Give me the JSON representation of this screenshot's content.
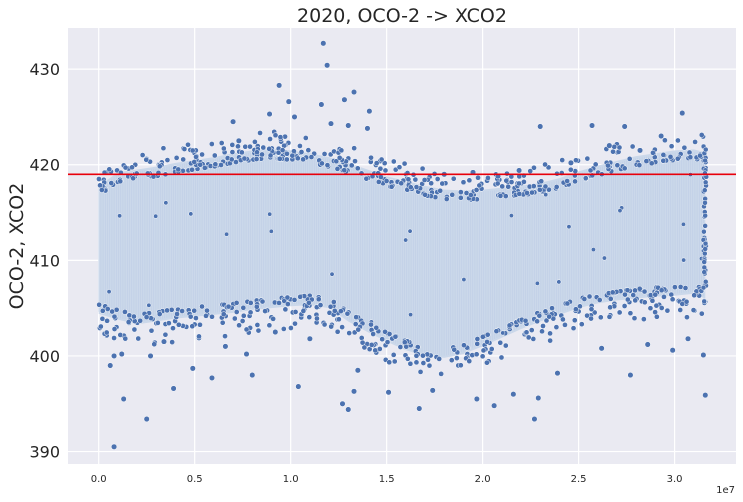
{
  "chart_data": {
    "type": "scatter",
    "title": "2020, OCO-2 -> XCO2",
    "xlabel": "",
    "ylabel": "OCO-2, XCO2",
    "x_tick_labels": [
      "0.0",
      "0.5",
      "1.0",
      "1.5",
      "2.0",
      "2.5",
      "3.0"
    ],
    "x_ticks": [
      0,
      5000000,
      10000000,
      15000000,
      20000000,
      25000000,
      30000000
    ],
    "x_offset_label": "1e7",
    "xlim": [
      -1600000,
      33200000
    ],
    "y_ticks": [
      390,
      400,
      410,
      420,
      430
    ],
    "y_tick_labels": [
      "390",
      "400",
      "410",
      "420",
      "430"
    ],
    "ylim": [
      388.7,
      434.3
    ],
    "hline": {
      "y": 419.0,
      "color": "#e8000b"
    },
    "grid": true,
    "background_color": "#eaeaf2",
    "marker_color": "#4c72b0",
    "band_fill_color": "#cbd8ea",
    "envelope": {
      "x": [
        0,
        1000000,
        2000000,
        3000000,
        4000000,
        5000000,
        6000000,
        7000000,
        8000000,
        9000000,
        10000000,
        11000000,
        12000000,
        13000000,
        14000000,
        15000000,
        16000000,
        17000000,
        18000000,
        19000000,
        20000000,
        21000000,
        22000000,
        23000000,
        24000000,
        25000000,
        26000000,
        27000000,
        28000000,
        29000000,
        30000000,
        31000000,
        31600000
      ],
      "upper": [
        417.8,
        419.2,
        419.5,
        419.8,
        420.2,
        420.5,
        420.8,
        421.2,
        421.5,
        421.7,
        421.5,
        421.2,
        420.8,
        420.2,
        419.5,
        418.8,
        418.3,
        417.8,
        417.4,
        417.3,
        417.4,
        417.6,
        417.8,
        418.1,
        418.6,
        419.3,
        419.9,
        420.4,
        420.9,
        421.2,
        421.5,
        421.6,
        421.3
      ],
      "lower": [
        404.4,
        403.8,
        403.3,
        403.6,
        403.9,
        404.1,
        404.3,
        404.5,
        404.8,
        405.0,
        405.2,
        405.3,
        405.0,
        403.6,
        402.5,
        401.5,
        400.6,
        400.0,
        399.8,
        400.2,
        401.0,
        401.9,
        402.8,
        403.6,
        404.3,
        405.0,
        405.5,
        405.8,
        406.0,
        406.2,
        406.3,
        406.5,
        406.0
      ]
    },
    "outliers": [
      [
        800000,
        390.5
      ],
      [
        1300000,
        395.5
      ],
      [
        2500000,
        393.4
      ],
      [
        3900000,
        396.6
      ],
      [
        5900000,
        397.7
      ],
      [
        8000000,
        398.0
      ],
      [
        10400000,
        396.8
      ],
      [
        12700000,
        395.0
      ],
      [
        13000000,
        394.4
      ],
      [
        13300000,
        396.3
      ],
      [
        16700000,
        394.5
      ],
      [
        20600000,
        394.8
      ],
      [
        22700000,
        393.4
      ],
      [
        22900000,
        395.6
      ],
      [
        27700000,
        398.0
      ],
      [
        31600000,
        395.9
      ],
      [
        31500000,
        400.1
      ],
      [
        9400000,
        428.3
      ],
      [
        9900000,
        426.6
      ],
      [
        11700000,
        432.7
      ],
      [
        11900000,
        430.4
      ],
      [
        12800000,
        426.8
      ],
      [
        13300000,
        427.6
      ],
      [
        13000000,
        424.1
      ],
      [
        14100000,
        425.6
      ],
      [
        14000000,
        423.8
      ],
      [
        30400000,
        425.4
      ],
      [
        23000000,
        424.0
      ],
      [
        25700000,
        424.1
      ],
      [
        27400000,
        424.0
      ],
      [
        11600000,
        426.3
      ],
      [
        12100000,
        424.3
      ],
      [
        10200000,
        425.0
      ],
      [
        8900000,
        425.3
      ],
      [
        7000000,
        424.5
      ],
      [
        7300000,
        422.5
      ],
      [
        800000,
        400.0
      ],
      [
        1200000,
        400.2
      ],
      [
        600000,
        399.0
      ],
      [
        2700000,
        400.0
      ],
      [
        3400000,
        401.5
      ],
      [
        4900000,
        398.7
      ],
      [
        6600000,
        401.0
      ],
      [
        7700000,
        400.2
      ],
      [
        9200000,
        402.5
      ],
      [
        11000000,
        401.8
      ],
      [
        13500000,
        398.5
      ],
      [
        15100000,
        396.2
      ],
      [
        17400000,
        396.4
      ],
      [
        19700000,
        395.5
      ],
      [
        21600000,
        396.0
      ],
      [
        23900000,
        398.2
      ],
      [
        26200000,
        400.8
      ],
      [
        28600000,
        401.2
      ],
      [
        29900000,
        400.6
      ],
      [
        30700000,
        401.8
      ],
      [
        18000000,
        419.0
      ],
      [
        19500000,
        419.2
      ],
      [
        20800000,
        418.8
      ],
      [
        21900000,
        419.4
      ],
      [
        24600000,
        420.2
      ],
      [
        26600000,
        422.0
      ],
      [
        28200000,
        421.5
      ],
      [
        29300000,
        423.0
      ]
    ]
  }
}
